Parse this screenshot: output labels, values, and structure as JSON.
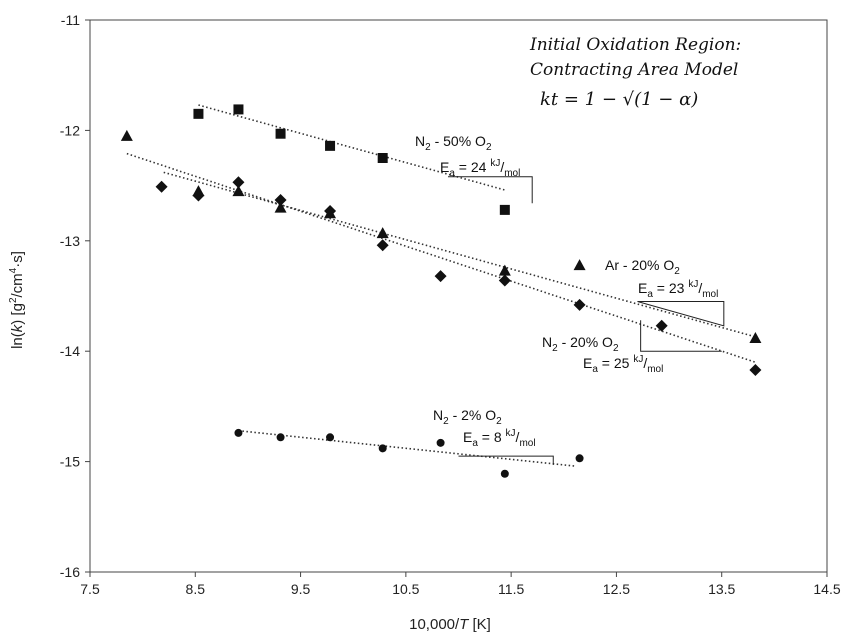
{
  "chart_data": {
    "type": "scatter",
    "title": "",
    "xlabel_parts": [
      "10,000/",
      "T",
      " [K]"
    ],
    "ylabel_parts": [
      "ln(",
      "k",
      ") [g",
      "2",
      "/cm",
      "4",
      "·s]"
    ],
    "xlim": [
      7.5,
      14.5
    ],
    "ylim": [
      -16,
      -11
    ],
    "xticks": [
      "7.5",
      "8.5",
      "9.5",
      "10.5",
      "11.5",
      "12.5",
      "13.5",
      "14.5"
    ],
    "yticks": [
      "-11",
      "-12",
      "-13",
      "-14",
      "-15",
      "-16"
    ],
    "grid": false,
    "model_title": "Initial Oxidation Region:",
    "model_subtitle": "Contracting Area Model",
    "model_equation": "kt = 1 − √(1 − α)",
    "series": [
      {
        "marker": "square",
        "label_parts": [
          "N",
          "2",
          " - 50% O",
          "2"
        ],
        "ea_parts": [
          "E",
          "a",
          " = 24 ",
          "kJ",
          "/",
          "mol"
        ],
        "points": [
          [
            8.53,
            -11.85
          ],
          [
            8.91,
            -11.81
          ],
          [
            9.31,
            -12.03
          ],
          [
            9.78,
            -12.14
          ],
          [
            10.28,
            -12.25
          ],
          [
            11.44,
            -12.72
          ]
        ],
        "fit": [
          [
            8.53,
            -11.77
          ],
          [
            11.44,
            -12.54
          ]
        ],
        "slope_triangle": [
          [
            10.9,
            -12.42
          ],
          [
            11.7,
            -12.66
          ]
        ]
      },
      {
        "marker": "triangle",
        "label_parts": [
          "Ar - 20% O",
          "2"
        ],
        "ea_parts": [
          "E",
          "a",
          " = 23 ",
          "kJ",
          "/",
          "mol"
        ],
        "points": [
          [
            7.85,
            -12.05
          ],
          [
            8.53,
            -12.55
          ],
          [
            8.91,
            -12.55
          ],
          [
            9.31,
            -12.7
          ],
          [
            9.78,
            -12.75
          ],
          [
            10.28,
            -12.93
          ],
          [
            11.44,
            -13.27
          ],
          [
            12.15,
            -13.22
          ],
          [
            13.82,
            -13.88
          ]
        ],
        "fit": [
          [
            8.2,
            -12.38
          ],
          [
            13.82,
            -13.87
          ]
        ],
        "slope_triangle": [
          [
            12.7,
            -13.55
          ],
          [
            13.52,
            -13.77
          ]
        ]
      },
      {
        "marker": "diamond",
        "label_parts": [
          "N",
          "2",
          " - 20% O",
          "2"
        ],
        "ea_parts": [
          "E",
          "a",
          " = 25 ",
          "kJ",
          "/",
          "mol"
        ],
        "points": [
          [
            8.18,
            -12.51
          ],
          [
            8.53,
            -12.59
          ],
          [
            8.91,
            -12.47
          ],
          [
            9.31,
            -12.63
          ],
          [
            9.78,
            -12.73
          ],
          [
            10.28,
            -13.04
          ],
          [
            10.83,
            -13.32
          ],
          [
            11.44,
            -13.36
          ],
          [
            12.15,
            -13.58
          ],
          [
            12.93,
            -13.77
          ],
          [
            13.82,
            -14.17
          ]
        ],
        "fit": [
          [
            7.85,
            -12.21
          ],
          [
            13.82,
            -14.1
          ]
        ],
        "slope_triangle": [
          [
            12.73,
            -13.72
          ],
          [
            13.5,
            -14.0
          ]
        ]
      },
      {
        "marker": "circle",
        "label_parts": [
          "N",
          "2",
          " - 2% O",
          "2"
        ],
        "ea_parts": [
          "E",
          "a",
          " = 8 ",
          "kJ",
          "/",
          "mol"
        ],
        "points": [
          [
            8.91,
            -14.74
          ],
          [
            9.31,
            -14.78
          ],
          [
            9.78,
            -14.78
          ],
          [
            10.28,
            -14.88
          ],
          [
            10.83,
            -14.83
          ],
          [
            11.44,
            -15.11
          ],
          [
            12.15,
            -14.97
          ]
        ],
        "fit": [
          [
            8.91,
            -14.72
          ],
          [
            12.1,
            -15.04
          ]
        ],
        "slope_triangle": [
          [
            11.0,
            -14.95
          ],
          [
            11.9,
            -15.03
          ]
        ]
      }
    ]
  }
}
